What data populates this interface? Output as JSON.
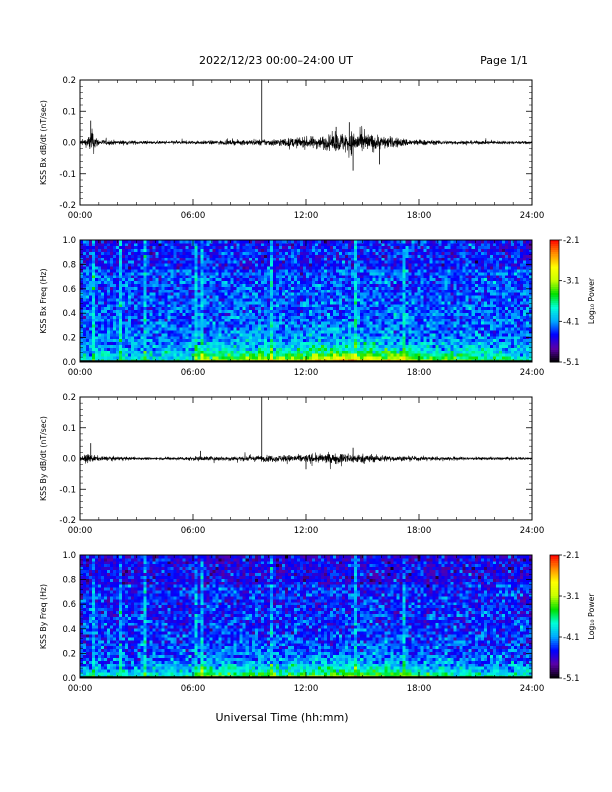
{
  "header": {
    "title": "2022/12/23  00:00–24:00 UT",
    "page": "Page 1/1"
  },
  "xaxis": {
    "label": "Universal Time (hh:mm)",
    "ticks": [
      "00:00",
      "06:00",
      "12:00",
      "18:00",
      "24:00"
    ],
    "range_hours": [
      0,
      24
    ]
  },
  "colorbar": {
    "label": "Log₁₀ Power",
    "ticks": [
      "-2.1",
      "-3.1",
      "-4.1",
      "-5.1"
    ],
    "range": [
      -5.1,
      -2.1
    ],
    "colormap": [
      "#000000",
      "#5a00a8",
      "#0000ff",
      "#00a8ff",
      "#00ffd8",
      "#00e000",
      "#c8ff00",
      "#ffff00",
      "#ff8c00",
      "#ff0000"
    ]
  },
  "chart_data": [
    {
      "type": "line",
      "id": "bx-waveform",
      "ylabel": "KSS Bx dB/dt (nT/sec)",
      "ylim": [
        -0.2,
        0.2
      ],
      "yticks": [
        "0.2",
        "0.1",
        "0.0",
        "-0.1",
        "-0.2"
      ],
      "x_unit": "hours UT",
      "envelope": [
        {
          "x": 0.0,
          "amp": 0.012
        },
        {
          "x": 0.4,
          "amp": 0.02
        },
        {
          "x": 0.6,
          "amp": 0.06
        },
        {
          "x": 1.0,
          "amp": 0.012
        },
        {
          "x": 4.0,
          "amp": 0.006
        },
        {
          "x": 6.5,
          "amp": 0.008
        },
        {
          "x": 8.0,
          "amp": 0.01
        },
        {
          "x": 10.0,
          "amp": 0.014
        },
        {
          "x": 11.5,
          "amp": 0.022
        },
        {
          "x": 13.0,
          "amp": 0.03
        },
        {
          "x": 14.0,
          "amp": 0.045
        },
        {
          "x": 14.5,
          "amp": 0.05
        },
        {
          "x": 15.0,
          "amp": 0.045
        },
        {
          "x": 16.0,
          "amp": 0.03
        },
        {
          "x": 17.5,
          "amp": 0.015
        },
        {
          "x": 19.0,
          "amp": 0.009
        },
        {
          "x": 24.0,
          "amp": 0.006
        }
      ],
      "spikes": [
        {
          "x": 0.57,
          "y": 0.07
        },
        {
          "x": 9.65,
          "y": 0.2
        },
        {
          "x": 14.3,
          "y": 0.065
        },
        {
          "x": 14.5,
          "y": -0.09
        },
        {
          "x": 15.9,
          "y": -0.07
        },
        {
          "x": 13.6,
          "y": 0.05
        }
      ]
    },
    {
      "type": "heatmap",
      "id": "bx-spectrogram",
      "ylabel": "KSS Bx Freq (Hz)",
      "ylim": [
        0.0,
        1.0
      ],
      "yticks": [
        "1.0",
        "0.8",
        "0.6",
        "0.4",
        "0.2",
        "0.0"
      ],
      "zlim": [
        -5.1,
        -2.1
      ],
      "background_log_power": -4.3,
      "low_freq_band": [
        {
          "x": 0,
          "boost": 0.35
        },
        {
          "x": 6,
          "boost": 0.45
        },
        {
          "x": 6.4,
          "boost": 0.9
        },
        {
          "x": 8,
          "boost": 0.8
        },
        {
          "x": 11,
          "boost": 0.95
        },
        {
          "x": 14,
          "boost": 1.25
        },
        {
          "x": 16,
          "boost": 1.1
        },
        {
          "x": 18,
          "boost": 0.85
        },
        {
          "x": 24,
          "boost": 0.5
        }
      ],
      "vertical_lines_hours": [
        0.7,
        2.2,
        3.5,
        6.1,
        6.5,
        10.1,
        14.6,
        17.2
      ]
    },
    {
      "type": "line",
      "id": "by-waveform",
      "ylabel": "KSS By dB/dt (nT/sec)",
      "ylim": [
        -0.2,
        0.2
      ],
      "yticks": [
        "0.2",
        "0.1",
        "0.0",
        "-0.1",
        "-0.2"
      ],
      "x_unit": "hours UT",
      "envelope": [
        {
          "x": 0.0,
          "amp": 0.01
        },
        {
          "x": 0.5,
          "amp": 0.02
        },
        {
          "x": 1.0,
          "amp": 0.01
        },
        {
          "x": 4.0,
          "amp": 0.005
        },
        {
          "x": 6.5,
          "amp": 0.01
        },
        {
          "x": 8.0,
          "amp": 0.01
        },
        {
          "x": 10.0,
          "amp": 0.014
        },
        {
          "x": 12.0,
          "amp": 0.018
        },
        {
          "x": 14.0,
          "amp": 0.024
        },
        {
          "x": 15.0,
          "amp": 0.02
        },
        {
          "x": 17.0,
          "amp": 0.01
        },
        {
          "x": 24.0,
          "amp": 0.005
        }
      ],
      "spikes": [
        {
          "x": 0.57,
          "y": 0.05
        },
        {
          "x": 6.4,
          "y": 0.025
        },
        {
          "x": 9.65,
          "y": 0.2
        },
        {
          "x": 14.5,
          "y": 0.035
        },
        {
          "x": 12.0,
          "y": -0.035
        }
      ]
    },
    {
      "type": "heatmap",
      "id": "by-spectrogram",
      "ylabel": "KSS By Freq (Hz)",
      "ylim": [
        0.0,
        1.0
      ],
      "yticks": [
        "1.0",
        "0.8",
        "0.6",
        "0.4",
        "0.2",
        "0.0"
      ],
      "zlim": [
        -5.1,
        -2.1
      ],
      "background_log_power": -4.4,
      "low_freq_band": [
        {
          "x": 0,
          "boost": 0.45
        },
        {
          "x": 6,
          "boost": 0.5
        },
        {
          "x": 6.4,
          "boost": 0.85
        },
        {
          "x": 8,
          "boost": 0.75
        },
        {
          "x": 11,
          "boost": 0.8
        },
        {
          "x": 14,
          "boost": 0.95
        },
        {
          "x": 16,
          "boost": 0.85
        },
        {
          "x": 18,
          "boost": 0.7
        },
        {
          "x": 24,
          "boost": 0.45
        }
      ],
      "vertical_lines_hours": [
        0.7,
        2.2,
        3.5,
        6.1,
        6.5,
        10.1,
        14.6,
        17.2
      ]
    }
  ]
}
